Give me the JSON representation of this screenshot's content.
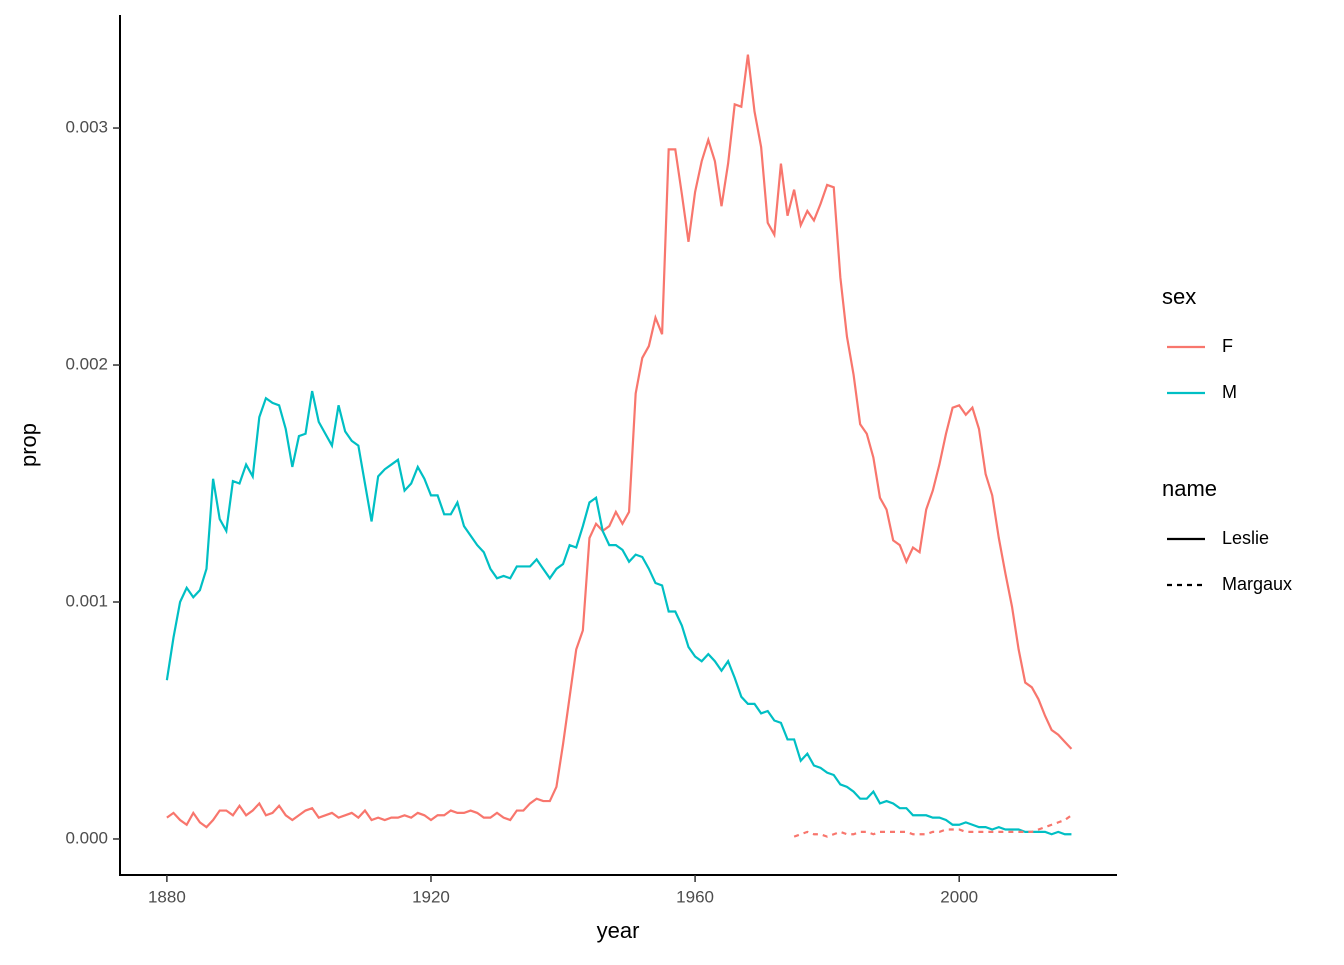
{
  "chart_data": {
    "type": "line",
    "x_label": "year",
    "y_label": "prop",
    "xlim": [
      1872.9,
      2023.9
    ],
    "ylim": [
      -0.000152,
      0.003477
    ],
    "xticks": [
      1880,
      1920,
      1960,
      2000
    ],
    "yticks": [
      {
        "value": 0,
        "label": "0.000"
      },
      0.001,
      0.002,
      0.003
    ],
    "legends": [
      {
        "title": "sex",
        "items": [
          {
            "label": "F",
            "color": "#f8766d"
          },
          {
            "label": "M",
            "color": "#00bfc4"
          }
        ]
      },
      {
        "title": "name",
        "items": [
          {
            "label": "Leslie",
            "dash": "solid"
          },
          {
            "label": "Margaux",
            "dash": "dashed"
          }
        ]
      }
    ],
    "x": [
      1880,
      1881,
      1882,
      1883,
      1884,
      1885,
      1886,
      1887,
      1888,
      1889,
      1890,
      1891,
      1892,
      1893,
      1894,
      1895,
      1896,
      1897,
      1898,
      1899,
      1900,
      1901,
      1902,
      1903,
      1904,
      1905,
      1906,
      1907,
      1908,
      1909,
      1910,
      1911,
      1912,
      1913,
      1914,
      1915,
      1916,
      1917,
      1918,
      1919,
      1920,
      1921,
      1922,
      1923,
      1924,
      1925,
      1926,
      1927,
      1928,
      1929,
      1930,
      1931,
      1932,
      1933,
      1934,
      1935,
      1936,
      1937,
      1938,
      1939,
      1940,
      1941,
      1942,
      1943,
      1944,
      1945,
      1946,
      1947,
      1948,
      1949,
      1950,
      1951,
      1952,
      1953,
      1954,
      1955,
      1956,
      1957,
      1958,
      1959,
      1960,
      1961,
      1962,
      1963,
      1964,
      1965,
      1966,
      1967,
      1968,
      1969,
      1970,
      1971,
      1972,
      1973,
      1974,
      1975,
      1976,
      1977,
      1978,
      1979,
      1980,
      1981,
      1982,
      1983,
      1984,
      1985,
      1986,
      1987,
      1988,
      1989,
      1990,
      1991,
      1992,
      1993,
      1994,
      1995,
      1996,
      1997,
      1998,
      1999,
      2000,
      2001,
      2002,
      2003,
      2004,
      2005,
      2006,
      2007,
      2008,
      2009,
      2010,
      2011,
      2012,
      2013,
      2014,
      2015,
      2016,
      2017
    ],
    "series": [
      {
        "sex": "F",
        "name": "Leslie",
        "color": "#f8766d",
        "dash": "solid",
        "values": [
          9e-05,
          0.00011,
          8e-05,
          6e-05,
          0.00011,
          7e-05,
          5e-05,
          8e-05,
          0.00012,
          0.00012,
          0.0001,
          0.00014,
          0.0001,
          0.00012,
          0.00015,
          0.0001,
          0.00011,
          0.00014,
          0.0001,
          8e-05,
          0.0001,
          0.00012,
          0.00013,
          9e-05,
          0.0001,
          0.00011,
          9e-05,
          0.0001,
          0.00011,
          9e-05,
          0.00012,
          8e-05,
          9e-05,
          8e-05,
          9e-05,
          9e-05,
          0.0001,
          9e-05,
          0.00011,
          0.0001,
          8e-05,
          0.0001,
          0.0001,
          0.00012,
          0.00011,
          0.00011,
          0.00012,
          0.00011,
          9e-05,
          9e-05,
          0.00011,
          9e-05,
          8e-05,
          0.00012,
          0.00012,
          0.00015,
          0.00017,
          0.00016,
          0.00016,
          0.00022,
          0.0004,
          0.0006,
          0.0008,
          0.00088,
          0.00127,
          0.00133,
          0.0013,
          0.00132,
          0.00138,
          0.00133,
          0.00138,
          0.00188,
          0.00203,
          0.00208,
          0.0022,
          0.00213,
          0.00291,
          0.00291,
          0.00272,
          0.00252,
          0.00273,
          0.00286,
          0.00295,
          0.00286,
          0.00267,
          0.00285,
          0.0031,
          0.00309,
          0.00331,
          0.00307,
          0.00292,
          0.0026,
          0.00255,
          0.00285,
          0.00263,
          0.00274,
          0.00259,
          0.00265,
          0.00261,
          0.00268,
          0.00276,
          0.00275,
          0.00237,
          0.00212,
          0.00196,
          0.00175,
          0.00171,
          0.00161,
          0.00144,
          0.00139,
          0.00126,
          0.00124,
          0.00117,
          0.00123,
          0.00121,
          0.00139,
          0.00147,
          0.00158,
          0.00171,
          0.00182,
          0.00183,
          0.00179,
          0.00182,
          0.00173,
          0.00154,
          0.00145,
          0.00127,
          0.00112,
          0.00098,
          0.0008,
          0.00066,
          0.00064,
          0.00059,
          0.00052,
          0.00046,
          0.00044,
          0.00041,
          0.00038
        ]
      },
      {
        "sex": "M",
        "name": "Leslie",
        "color": "#00bfc4",
        "dash": "solid",
        "values": [
          0.00067,
          0.00085,
          0.001,
          0.00106,
          0.00102,
          0.00105,
          0.00114,
          0.00152,
          0.00135,
          0.0013,
          0.00151,
          0.0015,
          0.00158,
          0.00153,
          0.00178,
          0.00186,
          0.00184,
          0.00183,
          0.00173,
          0.00157,
          0.0017,
          0.00171,
          0.00189,
          0.00176,
          0.00171,
          0.00166,
          0.00183,
          0.00172,
          0.00168,
          0.00166,
          0.0015,
          0.00134,
          0.00153,
          0.00156,
          0.00158,
          0.0016,
          0.00147,
          0.0015,
          0.00157,
          0.00152,
          0.00145,
          0.00145,
          0.00137,
          0.00137,
          0.00142,
          0.00132,
          0.00128,
          0.00124,
          0.00121,
          0.00114,
          0.0011,
          0.00111,
          0.0011,
          0.00115,
          0.00115,
          0.00115,
          0.00118,
          0.00114,
          0.0011,
          0.00114,
          0.00116,
          0.00124,
          0.00123,
          0.00132,
          0.00142,
          0.00144,
          0.0013,
          0.00124,
          0.00124,
          0.00122,
          0.00117,
          0.0012,
          0.00119,
          0.00114,
          0.00108,
          0.00107,
          0.00096,
          0.00096,
          0.0009,
          0.00081,
          0.00077,
          0.00075,
          0.00078,
          0.00075,
          0.00071,
          0.00075,
          0.00068,
          0.0006,
          0.00057,
          0.00057,
          0.00053,
          0.00054,
          0.0005,
          0.00049,
          0.00042,
          0.00042,
          0.00033,
          0.00036,
          0.00031,
          0.0003,
          0.00028,
          0.00027,
          0.00023,
          0.00022,
          0.0002,
          0.00017,
          0.00017,
          0.0002,
          0.00015,
          0.00016,
          0.00015,
          0.00013,
          0.00013,
          0.0001,
          0.0001,
          0.0001,
          9e-05,
          9e-05,
          8e-05,
          6e-05,
          6e-05,
          7e-05,
          6e-05,
          5e-05,
          5e-05,
          4e-05,
          5e-05,
          4e-05,
          4e-05,
          4e-05,
          3e-05,
          3e-05,
          3e-05,
          3e-05,
          2e-05,
          3e-05,
          2e-05,
          2e-05
        ]
      },
      {
        "sex": "F",
        "name": "Margaux",
        "color": "#f8766d",
        "dash": "dashed",
        "values": [
          null,
          null,
          null,
          null,
          null,
          null,
          null,
          null,
          null,
          null,
          null,
          null,
          null,
          null,
          null,
          null,
          null,
          null,
          null,
          null,
          null,
          null,
          null,
          null,
          null,
          null,
          null,
          null,
          null,
          null,
          null,
          null,
          null,
          null,
          null,
          null,
          null,
          null,
          null,
          null,
          null,
          null,
          null,
          null,
          null,
          null,
          null,
          null,
          null,
          null,
          null,
          null,
          null,
          null,
          null,
          null,
          null,
          null,
          null,
          null,
          null,
          null,
          null,
          null,
          null,
          null,
          null,
          null,
          null,
          null,
          null,
          null,
          null,
          null,
          null,
          null,
          null,
          null,
          null,
          null,
          null,
          null,
          null,
          null,
          null,
          null,
          null,
          null,
          null,
          null,
          null,
          null,
          null,
          null,
          null,
          1e-05,
          2e-05,
          3e-05,
          2e-05,
          2e-05,
          1e-05,
          2e-05,
          3e-05,
          2e-05,
          2e-05,
          3e-05,
          3e-05,
          2e-05,
          3e-05,
          3e-05,
          3e-05,
          3e-05,
          3e-05,
          2e-05,
          2e-05,
          2e-05,
          3e-05,
          3e-05,
          4e-05,
          4e-05,
          4e-05,
          3e-05,
          3e-05,
          3e-05,
          3e-05,
          3e-05,
          3e-05,
          3e-05,
          3e-05,
          3e-05,
          3e-05,
          3e-05,
          4e-05,
          5e-05,
          6e-05,
          7e-05,
          8e-05,
          0.0001
        ]
      }
    ]
  }
}
